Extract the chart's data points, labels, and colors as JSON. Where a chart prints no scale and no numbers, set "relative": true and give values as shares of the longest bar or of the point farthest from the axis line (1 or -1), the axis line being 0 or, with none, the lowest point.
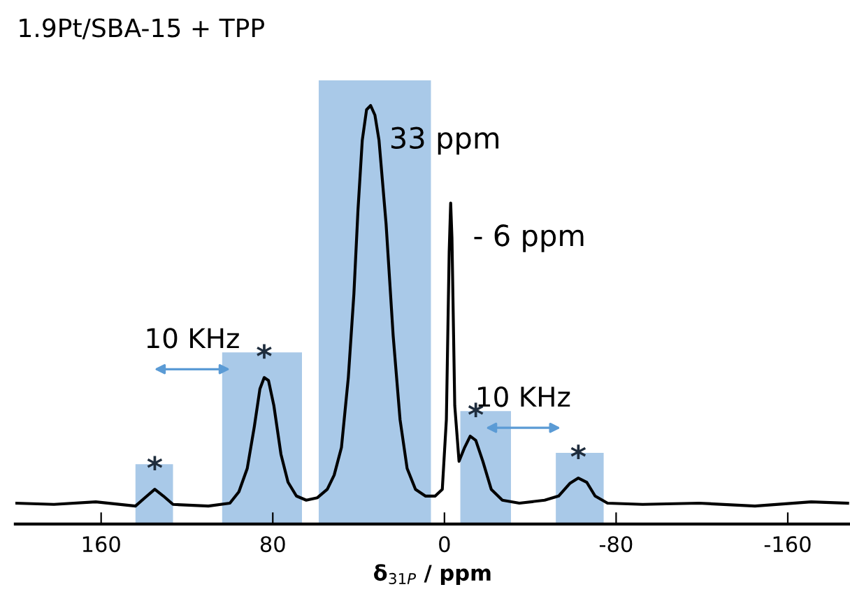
{
  "chart_data": {
    "type": "line",
    "title": "1.9Pt/SBA-15 + TPP",
    "xlabel": "δ$_{31P}$ / ppm",
    "relative": true,
    "tick_labels": "x",
    "grid": false,
    "legend": false,
    "marker": "none",
    "line_style": "solid",
    "xlim": [
      200,
      -189
    ],
    "xticks": [
      160,
      80,
      0,
      -80,
      -160
    ],
    "series": [
      {
        "color": "#000000",
        "x": [
          200,
          182,
          162.5,
          144,
          139.6,
          135,
          131,
          126.5,
          110,
          100,
          95.8,
          91.9,
          88.6,
          86,
          84,
          82,
          79.5,
          76.2,
          72.9,
          69,
          64.4,
          59.2,
          54.6,
          51.4,
          48,
          44.8,
          42.2,
          40.3,
          38.3,
          36.3,
          34.4,
          32.4,
          30.5,
          27.2,
          23.9,
          20.7,
          17.4,
          13.5,
          8.9,
          4.3,
          1,
          -0.9,
          -2.2,
          -2.9,
          -3.5,
          -4.8,
          -6.8,
          -9.4,
          -12,
          -14.6,
          -17.9,
          -21.8,
          -27,
          -34.9,
          -46.7,
          -53.2,
          -58.4,
          -62.4,
          -66.3,
          -70.2,
          -76,
          -92.4,
          -118.6,
          -144.7,
          -170.9,
          -187.9
        ],
        "values": [
          0.05,
          0.047,
          0.053,
          0.043,
          0.063,
          0.083,
          0.067,
          0.047,
          0.043,
          0.05,
          0.077,
          0.133,
          0.233,
          0.323,
          0.35,
          0.343,
          0.283,
          0.167,
          0.1,
          0.067,
          0.057,
          0.063,
          0.083,
          0.117,
          0.183,
          0.35,
          0.55,
          0.75,
          0.917,
          0.99,
          1.0,
          0.977,
          0.917,
          0.717,
          0.45,
          0.25,
          0.133,
          0.083,
          0.067,
          0.067,
          0.083,
          0.25,
          0.65,
          0.767,
          0.683,
          0.283,
          0.15,
          0.183,
          0.21,
          0.2,
          0.15,
          0.083,
          0.057,
          0.05,
          0.057,
          0.067,
          0.097,
          0.11,
          0.1,
          0.067,
          0.05,
          0.047,
          0.05,
          0.043,
          0.053,
          0.05
        ]
      }
    ],
    "bands": [
      {
        "axis": "x",
        "from": 144,
        "to": 126.5,
        "color": "#a9c9e8"
      },
      {
        "axis": "x",
        "from": 103.6,
        "to": 66.4,
        "color": "#a9c9e8"
      },
      {
        "axis": "x",
        "from": 58.6,
        "to": 6.3,
        "color": "#a9c9e8"
      },
      {
        "axis": "x",
        "from": -7.4,
        "to": -31,
        "color": "#a9c9e8"
      },
      {
        "axis": "x",
        "from": -51.9,
        "to": -74.2,
        "color": "#a9c9e8"
      }
    ],
    "annotations": [
      {
        "text": "33 ppm",
        "x": 33,
        "y": 1.0
      },
      {
        "text": "- 6 ppm",
        "x": -6,
        "y": 0.767
      },
      {
        "text": "*",
        "x": 135,
        "y": 0.083
      },
      {
        "text": "*",
        "x": 84,
        "y": 0.35
      },
      {
        "text": "*",
        "x": -14.6,
        "y": 0.21
      },
      {
        "text": "*",
        "x": -62.4,
        "y": 0.11
      },
      "10 KHz",
      "10 KHz"
    ]
  }
}
